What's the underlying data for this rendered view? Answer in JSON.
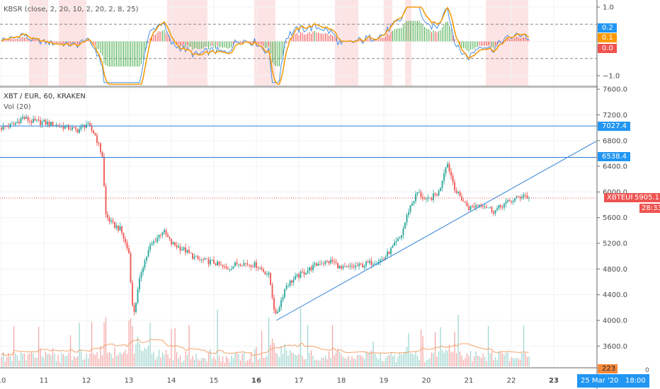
{
  "indicator_legend": "KBSR (close, 2, 20, 10, 2, 20, 2, 8, 25)",
  "symbol_legend": "XBT / EUR, 60, KRAKEN",
  "volume_legend": "Vol (20)",
  "colors": {
    "up": "#26a69a",
    "down": "#ef5350",
    "blue_line": "#4a90e2",
    "orange_line": "#f59b0c",
    "hist_red": "#ef5350",
    "hist_green": "#4caf50",
    "highlight": "#fde4e4",
    "hline": "#2a7fd4",
    "last_price": "#ef5350",
    "volume_ma": "#f5a46a"
  },
  "badges": {
    "osc_blue": "0.2",
    "osc_orange": "0.1",
    "osc_red": "0.0",
    "hline_1": "7027.4",
    "hline_2": "6538.4",
    "symbol": "XBTEUR",
    "last_price": "5905.1",
    "countdown": "28:33",
    "volume": "223",
    "volume_zero": "0",
    "crosshair_time": "25 Mar '20   18:00"
  },
  "chart_data": [
    {
      "type": "line",
      "name": "KBSR oscillator",
      "ylim": [
        -1.3,
        1.1
      ],
      "y_ticks": [
        "1.0",
        "−1.0"
      ],
      "y_tick_values": [
        1.0,
        -1.0
      ],
      "dashed_levels": [
        0.5,
        -0.5
      ],
      "highlight_ranges_day": [
        [
          10.65,
          11.1
        ],
        [
          11.35,
          12.0
        ],
        [
          13.9,
          14.85
        ],
        [
          15.95,
          16.45
        ],
        [
          17.85,
          18.4
        ],
        [
          19.0,
          19.2
        ],
        [
          19.5,
          19.65
        ],
        [
          21.4,
          22.4
        ]
      ]
    },
    {
      "type": "candlestick",
      "xlabel": "",
      "ylabel": "",
      "x_unit": "day of March 2020",
      "x_ticks": [
        "10",
        "11",
        "12",
        "13",
        "14",
        "15",
        "16",
        "17",
        "18",
        "19",
        "20",
        "21",
        "22",
        "23"
      ],
      "x_tick_values": [
        10,
        11,
        12,
        13,
        14,
        15,
        16,
        17,
        18,
        19,
        20,
        21,
        22,
        23
      ],
      "bold_ticks": [
        "16",
        "23"
      ],
      "ylim": [
        3430,
        7650
      ],
      "y_ticks": [
        "7600.0",
        "7200.0",
        "6800.0",
        "6400.0",
        "6000.0",
        "5600.0",
        "5200.0",
        "4800.0",
        "4400.0",
        "4000.0",
        "3600.0"
      ],
      "y_tick_values": [
        7600,
        7200,
        6800,
        6400,
        6000,
        5600,
        5200,
        4800,
        4400,
        4000,
        3600
      ],
      "close_path": [
        [
          10.0,
          7000
        ],
        [
          10.3,
          7050
        ],
        [
          10.5,
          7160
        ],
        [
          10.7,
          7100
        ],
        [
          11.0,
          7080
        ],
        [
          11.5,
          7010
        ],
        [
          11.8,
          6960
        ],
        [
          12.0,
          7060
        ],
        [
          12.2,
          6900
        ],
        [
          12.38,
          6550
        ],
        [
          12.45,
          5650
        ],
        [
          12.6,
          5500
        ],
        [
          12.8,
          5420
        ],
        [
          13.0,
          5050
        ],
        [
          13.1,
          4050
        ],
        [
          13.3,
          4800
        ],
        [
          13.5,
          5150
        ],
        [
          13.8,
          5400
        ],
        [
          14.0,
          5200
        ],
        [
          14.3,
          5100
        ],
        [
          14.6,
          4950
        ],
        [
          15.0,
          4900
        ],
        [
          15.3,
          4800
        ],
        [
          15.6,
          4900
        ],
        [
          16.0,
          4860
        ],
        [
          16.3,
          4700
        ],
        [
          16.45,
          4050
        ],
        [
          16.7,
          4550
        ],
        [
          17.0,
          4700
        ],
        [
          17.5,
          4900
        ],
        [
          17.8,
          4920
        ],
        [
          18.0,
          4800
        ],
        [
          18.5,
          4860
        ],
        [
          19.0,
          4960
        ],
        [
          19.4,
          5300
        ],
        [
          19.6,
          5750
        ],
        [
          19.8,
          6000
        ],
        [
          20.0,
          5850
        ],
        [
          20.3,
          6000
        ],
        [
          20.48,
          6480
        ],
        [
          20.7,
          6000
        ],
        [
          21.0,
          5750
        ],
        [
          21.3,
          5820
        ],
        [
          21.6,
          5700
        ],
        [
          21.8,
          5800
        ],
        [
          22.0,
          5860
        ],
        [
          22.3,
          5960
        ],
        [
          22.4,
          5905.1
        ]
      ],
      "horizontal_lines": [
        7027.4,
        6538.4
      ],
      "last_price": 5905.1,
      "trend_line": {
        "from": [
          16.47,
          4000
        ],
        "to": [
          24.0,
          6790
        ]
      },
      "volume_last": 223
    }
  ]
}
